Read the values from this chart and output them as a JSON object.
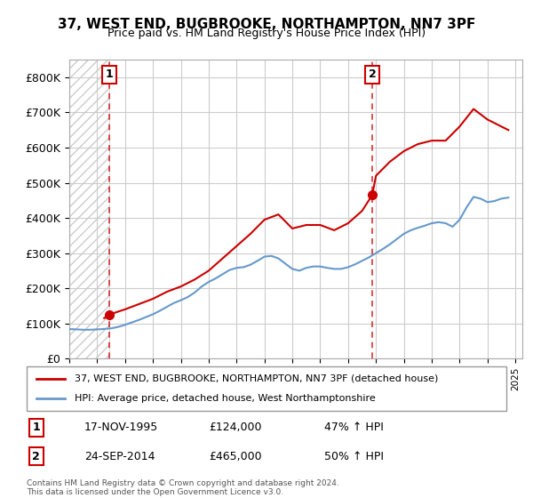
{
  "title": "37, WEST END, BUGBROOKE, NORTHAMPTON, NN7 3PF",
  "subtitle": "Price paid vs. HM Land Registry's House Price Index (HPI)",
  "ylabel_ticks": [
    "£0",
    "£100K",
    "£200K",
    "£300K",
    "£400K",
    "£500K",
    "£600K",
    "£700K",
    "£800K"
  ],
  "ytick_values": [
    0,
    100000,
    200000,
    300000,
    400000,
    500000,
    600000,
    700000,
    800000
  ],
  "ylim": [
    0,
    850000
  ],
  "xlim_start": 1993.0,
  "xlim_end": 2025.5,
  "sale_dates": [
    1995.88,
    2014.73
  ],
  "sale_prices": [
    124000,
    465000
  ],
  "sale_labels": [
    "1",
    "2"
  ],
  "sale_info": [
    {
      "label": "1",
      "date": "17-NOV-1995",
      "price": "£124,000",
      "hpi": "47% ↑ HPI"
    },
    {
      "label": "2",
      "date": "24-SEP-2014",
      "price": "£465,000",
      "hpi": "50% ↑ HPI"
    }
  ],
  "legend_entry1": "37, WEST END, BUGBROOKE, NORTHAMPTON, NN7 3PF (detached house)",
  "legend_entry2": "HPI: Average price, detached house, West Northamptonshire",
  "footer": "Contains HM Land Registry data © Crown copyright and database right 2024.\nThis data is licensed under the Open Government Licence v3.0.",
  "line_color_red": "#cc0000",
  "line_color_blue": "#6699cc",
  "marker_color_red": "#cc0000",
  "bg_color": "#ffffff",
  "grid_color": "#cccccc",
  "hatch_color": "#dddddd",
  "annotation_box_color": "#cc0000",
  "hpi_line": {
    "years": [
      1993.0,
      1993.5,
      1994.0,
      1994.5,
      1995.0,
      1995.5,
      1996.0,
      1996.5,
      1997.0,
      1997.5,
      1998.0,
      1998.5,
      1999.0,
      1999.5,
      2000.0,
      2000.5,
      2001.0,
      2001.5,
      2002.0,
      2002.5,
      2003.0,
      2003.5,
      2004.0,
      2004.5,
      2005.0,
      2005.5,
      2006.0,
      2006.5,
      2007.0,
      2007.5,
      2008.0,
      2008.5,
      2009.0,
      2009.5,
      2010.0,
      2010.5,
      2011.0,
      2011.5,
      2012.0,
      2012.5,
      2013.0,
      2013.5,
      2014.0,
      2014.5,
      2015.0,
      2015.5,
      2016.0,
      2016.5,
      2017.0,
      2017.5,
      2018.0,
      2018.5,
      2019.0,
      2019.5,
      2020.0,
      2020.5,
      2021.0,
      2021.5,
      2022.0,
      2022.5,
      2023.0,
      2023.5,
      2024.0,
      2024.5
    ],
    "values": [
      84000,
      83000,
      82000,
      82000,
      83000,
      84000,
      86000,
      90000,
      96000,
      103000,
      110000,
      118000,
      126000,
      136000,
      147000,
      158000,
      166000,
      175000,
      188000,
      205000,
      218000,
      228000,
      240000,
      252000,
      258000,
      260000,
      267000,
      278000,
      290000,
      292000,
      285000,
      270000,
      255000,
      250000,
      258000,
      262000,
      262000,
      258000,
      255000,
      255000,
      260000,
      268000,
      278000,
      288000,
      300000,
      312000,
      325000,
      340000,
      355000,
      365000,
      372000,
      378000,
      385000,
      388000,
      385000,
      375000,
      395000,
      430000,
      460000,
      455000,
      445000,
      448000,
      455000,
      458000
    ]
  },
  "price_line": {
    "years": [
      1995.5,
      1995.88,
      1996.0,
      1997.0,
      1998.0,
      1999.0,
      2000.0,
      2001.0,
      2002.0,
      2003.0,
      2004.0,
      2005.0,
      2006.0,
      2007.0,
      2008.0,
      2009.0,
      2010.0,
      2011.0,
      2012.0,
      2013.0,
      2014.0,
      2014.73,
      2015.0,
      2016.0,
      2017.0,
      2018.0,
      2019.0,
      2020.0,
      2021.0,
      2022.0,
      2023.0,
      2024.0,
      2024.5
    ],
    "values": [
      115000,
      124000,
      127000,
      140000,
      155000,
      170000,
      190000,
      205000,
      225000,
      250000,
      285000,
      320000,
      355000,
      395000,
      410000,
      370000,
      380000,
      380000,
      365000,
      385000,
      420000,
      465000,
      520000,
      560000,
      590000,
      610000,
      620000,
      620000,
      660000,
      710000,
      680000,
      660000,
      650000
    ]
  }
}
